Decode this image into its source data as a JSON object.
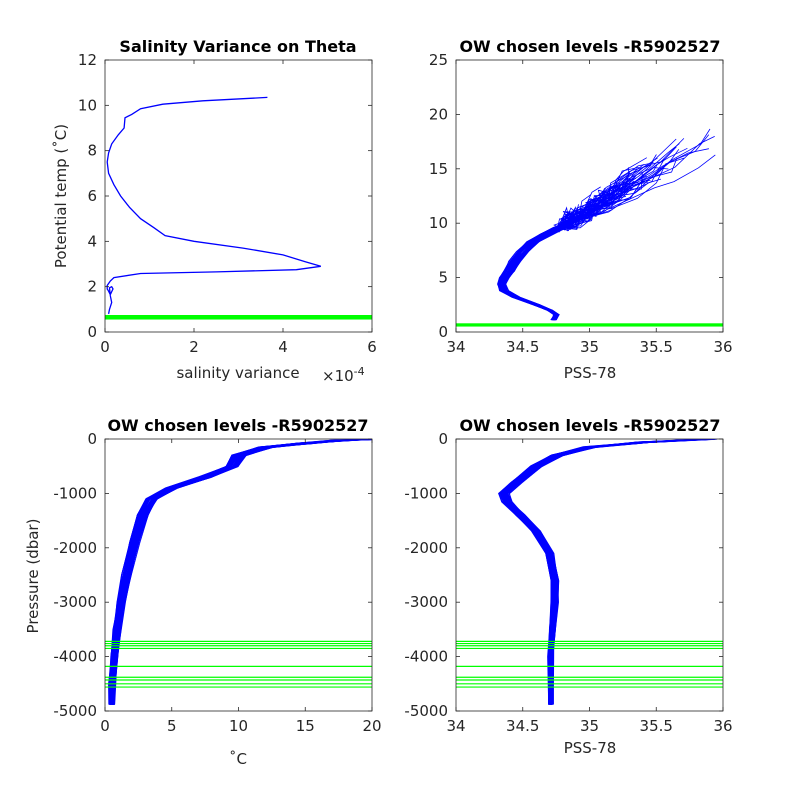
{
  "figure": {
    "background": "#ffffff"
  },
  "colors": {
    "profile": "#0000ff",
    "levels": "#00ff00",
    "axis": "#262626"
  },
  "chart_data": [
    {
      "id": "tl",
      "type": "line",
      "title": "Salinity Variance on Theta",
      "xlabel": "salinity variance",
      "ylabel": "Potential temp (˚C)",
      "x_exponent_label": "×10",
      "x_exponent_power": "-4",
      "xlim": [
        0,
        6
      ],
      "ylim": [
        0,
        12
      ],
      "xticks": [
        0,
        2,
        4,
        6
      ],
      "xtick_labels": [
        "0",
        "2",
        "4",
        "6"
      ],
      "yticks": [
        0,
        2,
        4,
        6,
        8,
        10,
        12
      ],
      "ytick_labels": [
        "0",
        "2",
        "4",
        "6",
        "8",
        "10",
        "12"
      ],
      "grid": false,
      "series": [
        {
          "kind": "line",
          "color": "#0000ff",
          "width": 1.3,
          "points": [
            [
              3.65,
              10.35
            ],
            [
              2.2,
              10.2
            ],
            [
              1.3,
              10.05
            ],
            [
              0.8,
              9.85
            ],
            [
              0.6,
              9.6
            ],
            [
              0.45,
              9.45
            ],
            [
              0.43,
              9.0
            ],
            [
              0.3,
              8.7
            ],
            [
              0.15,
              8.3
            ],
            [
              0.08,
              7.9
            ],
            [
              0.05,
              7.5
            ],
            [
              0.08,
              7.0
            ],
            [
              0.2,
              6.5
            ],
            [
              0.35,
              6.0
            ],
            [
              0.55,
              5.5
            ],
            [
              0.8,
              5.0
            ],
            [
              1.1,
              4.6
            ],
            [
              1.35,
              4.25
            ],
            [
              2.0,
              4.0
            ],
            [
              3.1,
              3.7
            ],
            [
              4.0,
              3.4
            ],
            [
              4.5,
              3.1
            ],
            [
              4.85,
              2.9
            ],
            [
              4.3,
              2.75
            ],
            [
              2.5,
              2.65
            ],
            [
              0.8,
              2.58
            ],
            [
              0.2,
              2.4
            ],
            [
              0.12,
              2.25
            ],
            [
              0.05,
              2.05
            ],
            [
              0.05,
              1.9
            ],
            [
              0.08,
              1.8
            ],
            [
              0.12,
              1.65
            ],
            [
              0.18,
              1.9
            ],
            [
              0.15,
              2.0
            ],
            [
              0.1,
              1.95
            ],
            [
              0.12,
              1.6
            ],
            [
              0.15,
              1.3
            ],
            [
              0.1,
              1.0
            ],
            [
              0.08,
              0.8
            ]
          ]
        },
        {
          "kind": "band",
          "color": "#00ff00",
          "y_from": 0.55,
          "y_to": 0.75
        }
      ]
    },
    {
      "id": "tr",
      "type": "line",
      "title": "OW chosen levels -R5902527",
      "xlabel": "PSS-78",
      "ylabel": "",
      "xlim": [
        34,
        36
      ],
      "ylim": [
        0,
        25
      ],
      "xticks": [
        34,
        34.5,
        35,
        35.5,
        36
      ],
      "xtick_labels": [
        "34",
        "34.5",
        "35",
        "35.5",
        "36"
      ],
      "yticks": [
        0,
        5,
        10,
        15,
        20,
        25
      ],
      "ytick_labels": [
        "0",
        "5",
        "10",
        "15",
        "20",
        "25"
      ],
      "grid": false,
      "series": [
        {
          "kind": "profiles",
          "color": "#0000ff",
          "width": 0.8,
          "count": 70,
          "spread": [
            0.05,
            0.025
          ],
          "base": [
            [
              34.73,
              1.1
            ],
            [
              34.75,
              1.6
            ],
            [
              34.7,
              2.0
            ],
            [
              34.6,
              2.5
            ],
            [
              34.45,
              3.2
            ],
            [
              34.36,
              3.8
            ],
            [
              34.34,
              4.4
            ],
            [
              34.36,
              5.0
            ],
            [
              34.4,
              5.6
            ],
            [
              34.44,
              6.5
            ],
            [
              34.5,
              7.4
            ],
            [
              34.58,
              8.3
            ],
            [
              34.68,
              9.0
            ],
            [
              34.78,
              9.6
            ]
          ],
          "tails": {
            "from": [
              34.78,
              9.6
            ],
            "to_x": [
              34.85,
              35.95
            ],
            "to_y": [
              11.0,
              20.3
            ]
          }
        },
        {
          "kind": "band",
          "color": "#00ff00",
          "y_from": 0.5,
          "y_to": 0.8
        }
      ]
    },
    {
      "id": "bl",
      "type": "line",
      "title": "OW chosen levels -R5902527",
      "xlabel": "˚C",
      "ylabel": "Pressure (dbar)",
      "xlim": [
        0,
        20
      ],
      "ylim": [
        -5000,
        0
      ],
      "xticks": [
        0,
        5,
        10,
        15,
        20
      ],
      "xtick_labels": [
        "0",
        "5",
        "10",
        "15",
        "20"
      ],
      "yticks": [
        0,
        -1000,
        -2000,
        -3000,
        -4000,
        -5000
      ],
      "ytick_labels": [
        "0",
        "-1000",
        "-2000",
        "-3000",
        "-4000",
        "-5000"
      ],
      "grid": false,
      "series": [
        {
          "kind": "profiles",
          "color": "#0000ff",
          "width": 0.9,
          "count": 60,
          "spread": [
            0.6,
            60
          ],
          "base": [
            [
              0.5,
              -4880
            ],
            [
              0.55,
              -4500
            ],
            [
              0.7,
              -4000
            ],
            [
              0.9,
              -3500
            ],
            [
              1.2,
              -3000
            ],
            [
              1.6,
              -2500
            ],
            [
              2.2,
              -1900
            ],
            [
              2.8,
              -1400
            ],
            [
              3.5,
              -1100
            ],
            [
              5.0,
              -900
            ],
            [
              7.5,
              -700
            ],
            [
              9.5,
              -500
            ],
            [
              10.0,
              -300
            ],
            [
              12.0,
              -150
            ],
            [
              15.0,
              -80
            ],
            [
              17.5,
              -30
            ],
            [
              20.0,
              0
            ]
          ]
        },
        {
          "kind": "hlines",
          "color": "#00ff00",
          "values": [
            -3720,
            -3760,
            -3800,
            -3850,
            -4180,
            -4380,
            -4430,
            -4500,
            -4560
          ]
        }
      ]
    },
    {
      "id": "br",
      "type": "line",
      "title": "OW chosen levels -R5902527",
      "xlabel": "PSS-78",
      "ylabel": "",
      "xlim": [
        34,
        36
      ],
      "ylim": [
        -5000,
        0
      ],
      "xticks": [
        34,
        34.5,
        35,
        35.5,
        36
      ],
      "xtick_labels": [
        "34",
        "34.5",
        "35",
        "35.5",
        "36"
      ],
      "yticks": [
        0,
        -1000,
        -2000,
        -3000,
        -4000,
        -5000
      ],
      "ytick_labels": [
        "0",
        "-1000",
        "-2000",
        "-3000",
        "-4000",
        "-5000"
      ],
      "grid": false,
      "series": [
        {
          "kind": "profiles",
          "color": "#0000ff",
          "width": 0.9,
          "count": 60,
          "spread": [
            0.05,
            60
          ],
          "base": [
            [
              34.71,
              -4880
            ],
            [
              34.71,
              -4000
            ],
            [
              34.72,
              -3500
            ],
            [
              34.74,
              -3000
            ],
            [
              34.74,
              -2600
            ],
            [
              34.7,
              -2100
            ],
            [
              34.6,
              -1700
            ],
            [
              34.48,
              -1400
            ],
            [
              34.38,
              -1150
            ],
            [
              34.36,
              -1000
            ],
            [
              34.45,
              -800
            ],
            [
              34.6,
              -500
            ],
            [
              34.75,
              -300
            ],
            [
              35.0,
              -150
            ],
            [
              35.4,
              -60
            ],
            [
              35.9,
              0
            ]
          ]
        },
        {
          "kind": "hlines",
          "color": "#00ff00",
          "values": [
            -3720,
            -3760,
            -3800,
            -3850,
            -4180,
            -4380,
            -4430,
            -4500,
            -4560
          ]
        }
      ]
    }
  ]
}
